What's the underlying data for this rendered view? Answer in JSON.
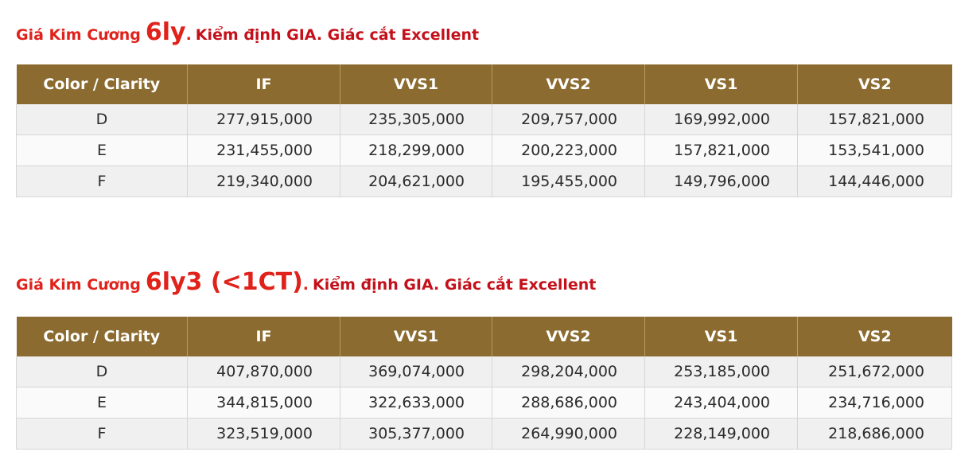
{
  "section1": {
    "title_prefix": "Giá Kim Cương",
    "title_size": "6ly",
    "title_dot": ".",
    "title_suffix": "Kiểm định GIA. Giác cắt Excellent",
    "headers": [
      "Color / Clarity",
      "IF",
      "VVS1",
      "VVS2",
      "VS1",
      "VS2"
    ],
    "rows": [
      {
        "color": "D",
        "values": [
          "277,915,000",
          "235,305,000",
          "209,757,000",
          "169,992,000",
          "157,821,000"
        ]
      },
      {
        "color": "E",
        "values": [
          "231,455,000",
          "218,299,000",
          "200,223,000",
          "157,821,000",
          "153,541,000"
        ]
      },
      {
        "color": "F",
        "values": [
          "219,340,000",
          "204,621,000",
          "195,455,000",
          "149,796,000",
          "144,446,000"
        ]
      }
    ]
  },
  "section2": {
    "title_prefix": "Giá Kim Cương",
    "title_size": "6ly3 (<1CT)",
    "title_dot": ".",
    "title_suffix": "Kiểm định GIA. Giác cắt Excellent",
    "headers": [
      "Color / Clarity",
      "IF",
      "VVS1",
      "VVS2",
      "VS1",
      "VS2"
    ],
    "rows": [
      {
        "color": "D",
        "values": [
          "407,870,000",
          "369,074,000",
          "298,204,000",
          "253,185,000",
          "251,672,000"
        ]
      },
      {
        "color": "E",
        "values": [
          "344,815,000",
          "322,633,000",
          "288,686,000",
          "243,404,000",
          "234,716,000"
        ]
      },
      {
        "color": "F",
        "values": [
          "323,519,000",
          "305,377,000",
          "264,990,000",
          "228,149,000",
          "218,686,000"
        ]
      }
    ]
  },
  "colors": {
    "title_red": "#e0221b",
    "header_brown": "#8b6b2f",
    "row_odd": "#f0f0f0",
    "row_even": "#fafafa"
  }
}
